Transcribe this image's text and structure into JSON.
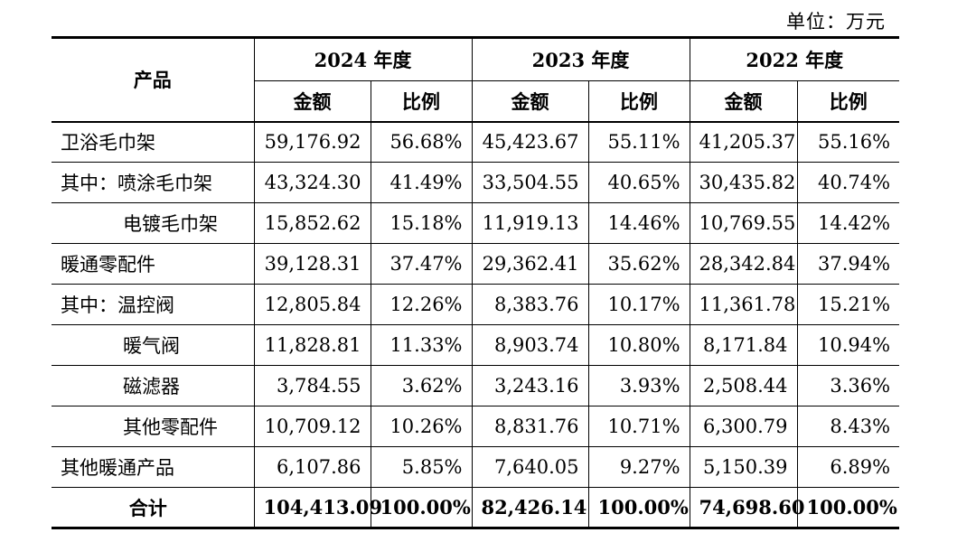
{
  "unit_label": "单位：万元",
  "header": {
    "product": "产品",
    "years": [
      "2024 年度",
      "2023 年度",
      "2022 年度"
    ],
    "amount": "金额",
    "ratio": "比例"
  },
  "rows": [
    {
      "label": "卫浴毛巾架",
      "values": [
        "59,176.92",
        "56.68%",
        "45,423.67",
        "55.11%",
        "41,205.37",
        "55.16%"
      ]
    },
    {
      "label": "其中：喷涂毛巾架",
      "values": [
        "43,324.30",
        "41.49%",
        "33,504.55",
        "40.65%",
        "30,435.82",
        "40.74%"
      ]
    },
    {
      "label": "电镀毛巾架",
      "values": [
        "15,852.62",
        "15.18%",
        "11,919.13",
        "14.46%",
        "10,769.55",
        "14.42%"
      ]
    },
    {
      "label": "暖通零配件",
      "values": [
        "39,128.31",
        "37.47%",
        "29,362.41",
        "35.62%",
        "28,342.84",
        "37.94%"
      ]
    },
    {
      "label": "其中：温控阀",
      "values": [
        "12,805.84",
        "12.26%",
        "8,383.76",
        "10.17%",
        "11,361.78",
        "15.21%"
      ]
    },
    {
      "label": "暖气阀",
      "values": [
        "11,828.81",
        "11.33%",
        "8,903.74",
        "10.80%",
        "8,171.84",
        "10.94%"
      ]
    },
    {
      "label": "磁滤器",
      "values": [
        "3,784.55",
        "3.62%",
        "3,243.16",
        "3.93%",
        "2,508.44",
        "3.36%"
      ]
    },
    {
      "label": "其他零配件",
      "values": [
        "10,709.12",
        "10.26%",
        "8,831.76",
        "10.71%",
        "6,300.79",
        "8.43%"
      ]
    },
    {
      "label": "其他暖通产品",
      "values": [
        "6,107.86",
        "5.85%",
        "7,640.05",
        "9.27%",
        "5,150.39",
        "6.89%"
      ]
    }
  ],
  "total": {
    "label": "合计",
    "values": [
      "104,413.09",
      "100.00%",
      "82,426.14",
      "100.00%",
      "74,698.60",
      "100.00%"
    ]
  }
}
